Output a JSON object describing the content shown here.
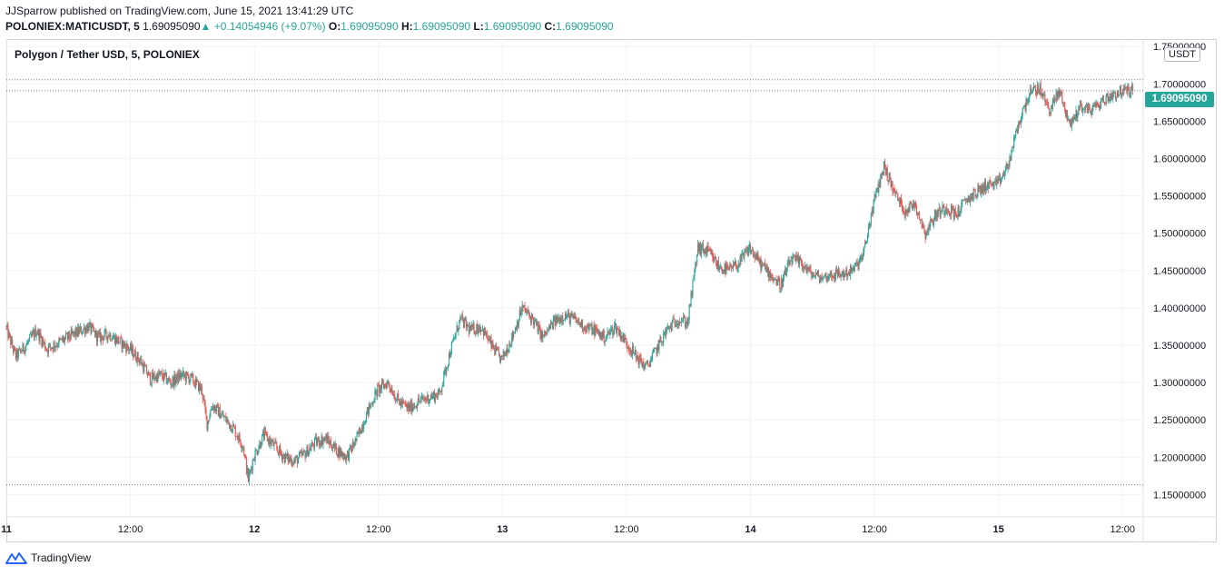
{
  "header": {
    "publisher_line": "JJSparrow published on TradingView.com, June 15, 2021 13:41:29 UTC",
    "symbol": "POLONIEX:MATICUSDT, 5",
    "last_price": "1.69095090",
    "change_arrow": "▲",
    "change": "+0.14054946 (+9.07%)",
    "open_label": "O:",
    "open": "1.69095090",
    "high_label": "H:",
    "high": "1.69095090",
    "low_label": "L:",
    "low": "1.69095090",
    "close_label": "C:",
    "close": "1.69095090"
  },
  "legend": {
    "title": "Polygon / Tether USD, 5, POLONIEX"
  },
  "currency_badge": "USDT",
  "price_tag": "1.69095090",
  "footer": {
    "brand": "TradingView"
  },
  "colors": {
    "up": "#26a69a",
    "down": "#ef5350",
    "grid": "#f0f3fa",
    "text": "#131722"
  },
  "chart_data": {
    "type": "candlestick",
    "title": "Polygon / Tether USD, 5, POLONIEX",
    "y_axis_ticks": [
      "1.15000000",
      "1.20000000",
      "1.25000000",
      "1.30000000",
      "1.35000000",
      "1.40000000",
      "1.45000000",
      "1.50000000",
      "1.55000000",
      "1.60000000",
      "1.65000000",
      "1.70000000",
      "1.75000000"
    ],
    "ylim": [
      1.12,
      1.76
    ],
    "x_axis_ticks": [
      "11",
      "12:00",
      "12",
      "12:00",
      "13",
      "12:00",
      "14",
      "12:00",
      "15",
      "12:00"
    ],
    "x_tick_times": [
      0,
      12,
      24,
      36,
      48,
      60,
      72,
      84,
      96,
      108
    ],
    "xlim_hours": [
      0,
      110
    ],
    "reference_lines": [
      1.7055,
      1.691,
      1.163
    ],
    "last_value": 1.6909509,
    "series": [
      {
        "interval": "5",
        "anchors": [
          [
            0,
            1.375
          ],
          [
            1,
            1.335
          ],
          [
            2,
            1.35
          ],
          [
            3,
            1.37
          ],
          [
            4,
            1.345
          ],
          [
            6,
            1.36
          ],
          [
            8,
            1.375
          ],
          [
            9,
            1.36
          ],
          [
            10,
            1.365
          ],
          [
            11,
            1.355
          ],
          [
            12,
            1.345
          ],
          [
            13,
            1.33
          ],
          [
            14,
            1.305
          ],
          [
            15,
            1.31
          ],
          [
            16,
            1.3
          ],
          [
            17,
            1.31
          ],
          [
            18,
            1.305
          ],
          [
            19,
            1.29
          ],
          [
            19.5,
            1.245
          ],
          [
            20,
            1.27
          ],
          [
            21,
            1.255
          ],
          [
            22,
            1.24
          ],
          [
            23,
            1.215
          ],
          [
            23.5,
            1.17
          ],
          [
            24,
            1.2
          ],
          [
            25,
            1.23
          ],
          [
            26,
            1.215
          ],
          [
            27,
            1.2
          ],
          [
            28,
            1.195
          ],
          [
            29,
            1.205
          ],
          [
            30,
            1.22
          ],
          [
            31,
            1.225
          ],
          [
            32,
            1.21
          ],
          [
            33,
            1.2
          ],
          [
            34,
            1.225
          ],
          [
            35,
            1.26
          ],
          [
            36,
            1.29
          ],
          [
            37,
            1.3
          ],
          [
            38,
            1.275
          ],
          [
            39,
            1.265
          ],
          [
            40,
            1.275
          ],
          [
            41,
            1.28
          ],
          [
            42,
            1.285
          ],
          [
            43,
            1.34
          ],
          [
            44,
            1.385
          ],
          [
            45,
            1.37
          ],
          [
            46,
            1.375
          ],
          [
            47,
            1.35
          ],
          [
            48,
            1.33
          ],
          [
            49,
            1.36
          ],
          [
            50,
            1.4
          ],
          [
            51,
            1.385
          ],
          [
            52,
            1.36
          ],
          [
            53,
            1.38
          ],
          [
            54,
            1.39
          ],
          [
            55,
            1.385
          ],
          [
            56,
            1.375
          ],
          [
            57,
            1.37
          ],
          [
            58,
            1.36
          ],
          [
            59,
            1.375
          ],
          [
            60,
            1.355
          ],
          [
            61,
            1.335
          ],
          [
            62,
            1.32
          ],
          [
            63,
            1.345
          ],
          [
            64,
            1.37
          ],
          [
            65,
            1.385
          ],
          [
            66,
            1.38
          ],
          [
            67,
            1.48
          ],
          [
            68,
            1.475
          ],
          [
            69,
            1.455
          ],
          [
            70,
            1.45
          ],
          [
            71,
            1.46
          ],
          [
            72,
            1.48
          ],
          [
            73,
            1.46
          ],
          [
            74,
            1.445
          ],
          [
            75,
            1.43
          ],
          [
            76,
            1.465
          ],
          [
            77,
            1.46
          ],
          [
            78,
            1.445
          ],
          [
            79,
            1.44
          ],
          [
            80,
            1.445
          ],
          [
            81,
            1.445
          ],
          [
            82,
            1.45
          ],
          [
            83,
            1.47
          ],
          [
            84,
            1.54
          ],
          [
            85,
            1.59
          ],
          [
            86,
            1.555
          ],
          [
            87,
            1.53
          ],
          [
            88,
            1.54
          ],
          [
            89,
            1.5
          ],
          [
            90,
            1.525
          ],
          [
            91,
            1.535
          ],
          [
            92,
            1.525
          ],
          [
            93,
            1.545
          ],
          [
            94,
            1.555
          ],
          [
            95,
            1.565
          ],
          [
            96,
            1.565
          ],
          [
            97,
            1.59
          ],
          [
            98,
            1.645
          ],
          [
            99,
            1.685
          ],
          [
            100,
            1.695
          ],
          [
            101,
            1.665
          ],
          [
            102,
            1.69
          ],
          [
            103,
            1.645
          ],
          [
            104,
            1.67
          ],
          [
            105,
            1.665
          ],
          [
            106,
            1.675
          ],
          [
            107,
            1.685
          ],
          [
            108,
            1.69
          ],
          [
            109,
            1.691
          ]
        ]
      }
    ]
  }
}
